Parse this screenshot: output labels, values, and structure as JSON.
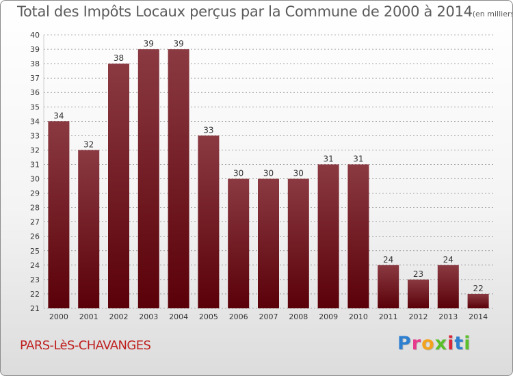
{
  "title": "Total des Impôts Locaux perçus par la Commune de 2000 à 2014",
  "unit": "(en milliers d'€)",
  "commune": "PARS-LèS-CHAVANGES",
  "logo": {
    "text": "Proxiti",
    "letter_colors": [
      "#2e7fd0",
      "#e83a8c",
      "#f2a21b",
      "#5bbf2b",
      "#d9263a",
      "#2e7fd0",
      "#5bbf2b"
    ]
  },
  "colors": {
    "bar_top": "#8b3a42",
    "bar_bottom": "#5a0008",
    "grid": "#6a6a6a",
    "axis_text": "#333333"
  },
  "chart_data": {
    "type": "bar",
    "categories": [
      "2000",
      "2001",
      "2002",
      "2003",
      "2004",
      "2005",
      "2006",
      "2007",
      "2008",
      "2009",
      "2010",
      "2011",
      "2012",
      "2013",
      "2014"
    ],
    "values": [
      34,
      32,
      38,
      39,
      39,
      33,
      30,
      30,
      30,
      31,
      31,
      24,
      23,
      24,
      22
    ],
    "title": "Total des Impôts Locaux perçus par la Commune de 2000 à 2014",
    "xlabel": "",
    "ylabel": "",
    "ylim": [
      21,
      40
    ],
    "yticks": [
      21,
      22,
      23,
      24,
      25,
      26,
      27,
      28,
      29,
      30,
      31,
      32,
      33,
      34,
      35,
      36,
      37,
      38,
      39,
      40
    ],
    "grid": true,
    "data_labels": true
  }
}
